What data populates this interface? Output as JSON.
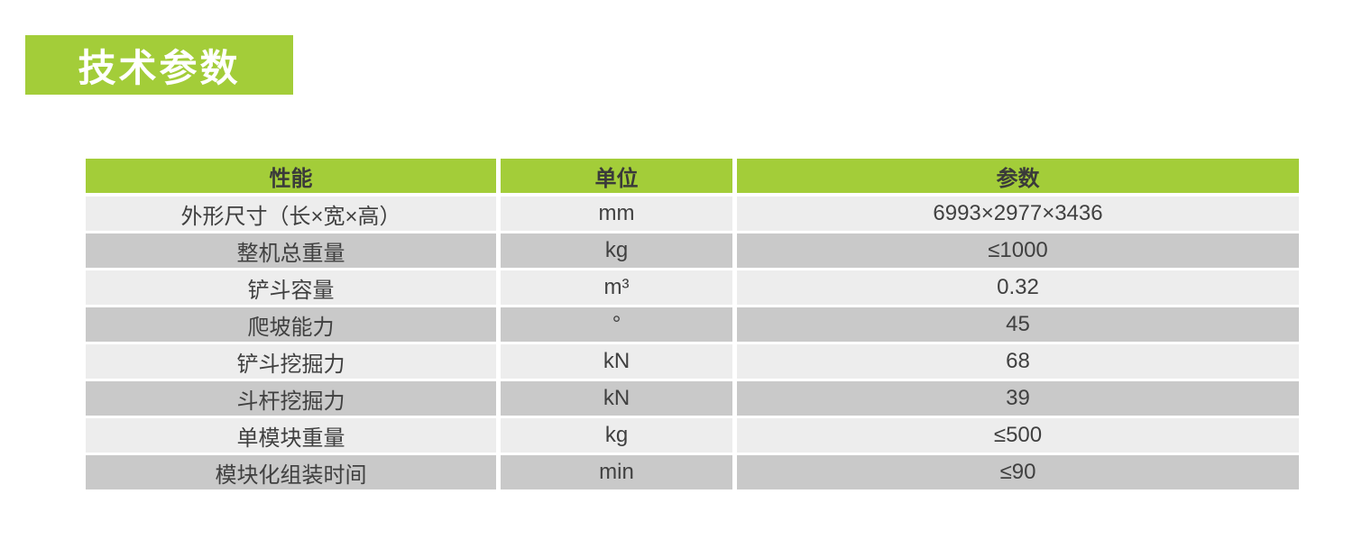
{
  "banner": {
    "title": "技术参数"
  },
  "table": {
    "headers": [
      "性能",
      "单位",
      "参数"
    ],
    "rows": [
      {
        "property": "外形尺寸（长×宽×高）",
        "unit": "mm",
        "value": "6993×2977×3436"
      },
      {
        "property": "整机总重量",
        "unit": "kg",
        "value": "≤1000"
      },
      {
        "property": "铲斗容量",
        "unit": "m³",
        "value": "0.32"
      },
      {
        "property": "爬坡能力",
        "unit": "°",
        "value": "45"
      },
      {
        "property": "铲斗挖掘力",
        "unit": "kN",
        "value": "68"
      },
      {
        "property": "斗杆挖掘力",
        "unit": "kN",
        "value": "39"
      },
      {
        "property": "单模块重量",
        "unit": "kg",
        "value": "≤500"
      },
      {
        "property": "模块化组装时间",
        "unit": "min",
        "value": "≤90"
      }
    ]
  },
  "theme": {
    "accent-green": "#a3cd39",
    "banner-text": "#ffffff",
    "header-text": "#3a3a3a",
    "cell-text": "#404040",
    "row-light": "#ededed",
    "row-dark": "#c9c9c9",
    "page-bg": "#ffffff"
  }
}
